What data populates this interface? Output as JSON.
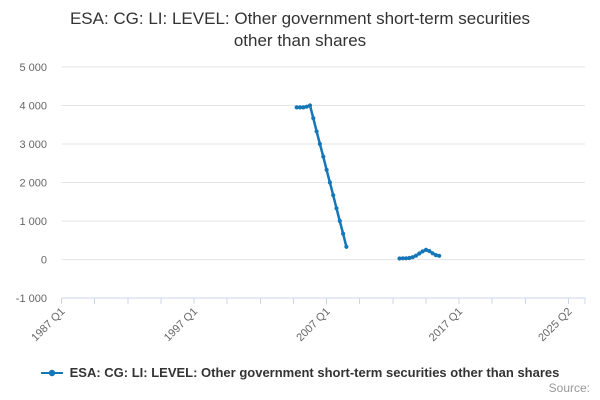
{
  "title": {
    "line1": "ESA: CG: LI: LEVEL: Other government short-term securities",
    "line2": "other than shares"
  },
  "legend": {
    "label": "ESA: CG: LI: LEVEL: Other government short-term securities other than shares"
  },
  "credits": {
    "label": "Source:"
  },
  "colors": {
    "series": "#1576b8",
    "grid": "#e6e6e6",
    "axis": "#ccd6eb",
    "tick_label": "#666666",
    "title_text": "#333333",
    "legend_text": "#333333",
    "credits_text": "#999999"
  },
  "chart_data": {
    "type": "line",
    "title": "ESA: CG: LI: LEVEL: Other government short-term securities other than shares",
    "xlabel": "",
    "ylabel": "",
    "grid": true,
    "legend_position": "bottom",
    "x_axis": {
      "start": "1987 Q1",
      "end": "2025 Q2",
      "tick_labels": [
        "1987 Q1",
        "1997 Q1",
        "2007 Q1",
        "2017 Q1",
        "2025 Q2"
      ],
      "tick_interval_quarters": 10,
      "label_rotation": -45
    },
    "y_axis": {
      "min": -1000,
      "max": 5000,
      "tick_step": 1000,
      "ticks": [
        {
          "value": -1000,
          "label": "-1 000"
        },
        {
          "value": 0,
          "label": "0"
        },
        {
          "value": 1000,
          "label": "1 000"
        },
        {
          "value": 2000,
          "label": "2 000"
        },
        {
          "value": 3000,
          "label": "3 000"
        },
        {
          "value": 4000,
          "label": "4 000"
        },
        {
          "value": 5000,
          "label": "5 000"
        }
      ]
    },
    "series": [
      {
        "name": "ESA: CG: LI: LEVEL: Other government short-term securities other than shares",
        "color": "#1576b8",
        "points": [
          [
            "2004 Q4",
            3950
          ],
          [
            "2005 Q1",
            3950
          ],
          [
            "2005 Q2",
            3950
          ],
          [
            "2005 Q3",
            3970
          ],
          [
            "2005 Q4",
            4000
          ],
          [
            "2006 Q1",
            3670
          ],
          [
            "2006 Q2",
            3330
          ],
          [
            "2006 Q3",
            3000
          ],
          [
            "2006 Q4",
            2670
          ],
          [
            "2007 Q1",
            2330
          ],
          [
            "2007 Q2",
            2000
          ],
          [
            "2007 Q3",
            1670
          ],
          [
            "2007 Q4",
            1330
          ],
          [
            "2008 Q1",
            1000
          ],
          [
            "2008 Q2",
            670
          ],
          [
            "2008 Q3",
            330
          ],
          [
            "2012 Q3",
            25
          ],
          [
            "2012 Q4",
            30
          ],
          [
            "2013 Q1",
            30
          ],
          [
            "2013 Q2",
            40
          ],
          [
            "2013 Q3",
            60
          ],
          [
            "2013 Q4",
            100
          ],
          [
            "2014 Q1",
            155
          ],
          [
            "2014 Q2",
            210
          ],
          [
            "2014 Q3",
            250
          ],
          [
            "2014 Q4",
            220
          ],
          [
            "2015 Q1",
            160
          ],
          [
            "2015 Q2",
            115
          ],
          [
            "2015 Q3",
            95
          ]
        ]
      }
    ]
  }
}
